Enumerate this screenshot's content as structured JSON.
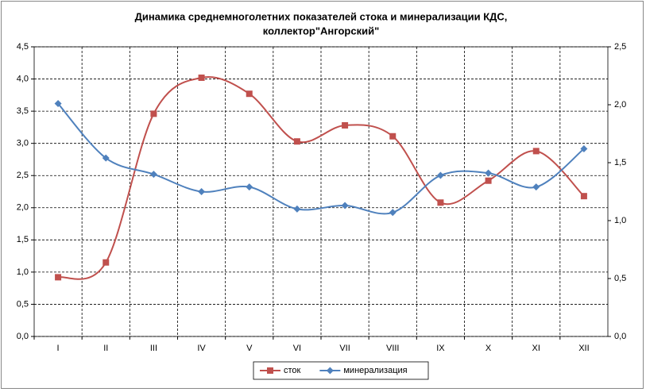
{
  "chart_data": {
    "type": "line",
    "title": [
      "Динамика среднемноголетних показателей стока и минерализации КДС,",
      "коллектор\"Ангорский\""
    ],
    "categories": [
      "I",
      "II",
      "III",
      "IV",
      "V",
      "VI",
      "VII",
      "VIII",
      "IX",
      "X",
      "XI",
      "XII"
    ],
    "series": [
      {
        "name": "сток",
        "color": "#c0504d",
        "marker": "square",
        "smooth": true,
        "values": [
          0.92,
          1.15,
          3.46,
          4.02,
          3.77,
          3.03,
          3.28,
          3.11,
          2.08,
          2.42,
          2.88,
          2.18
        ]
      },
      {
        "name": "минерализация",
        "color": "#4f81bd",
        "marker": "diamond",
        "smooth": true,
        "axis": "y2",
        "values": [
          2.01,
          1.54,
          1.4,
          1.25,
          1.29,
          1.1,
          1.13,
          1.07,
          1.39,
          1.41,
          1.29,
          1.62
        ]
      }
    ],
    "ylim": [
      0,
      4.5
    ],
    "yticks": [
      {
        "value": 0,
        "label": "0,0"
      },
      {
        "value": 0.5,
        "label": "0,5"
      },
      {
        "value": 1,
        "label": "1,0"
      },
      {
        "value": 1.5,
        "label": "1,5"
      },
      {
        "value": 2,
        "label": "2,0"
      },
      {
        "value": 2.5,
        "label": "2,5"
      },
      {
        "value": 3,
        "label": "3,0"
      },
      {
        "value": 3.5,
        "label": "3,5"
      },
      {
        "value": 4,
        "label": "4,0"
      },
      {
        "value": 4.5,
        "label": "4,5"
      }
    ],
    "y2lim": [
      0,
      2.5
    ],
    "y2ticks": [
      {
        "value": 0,
        "label": "0,0"
      },
      {
        "value": 0.5,
        "label": "0,5"
      },
      {
        "value": 1,
        "label": "1,0"
      },
      {
        "value": 1.5,
        "label": "1,5"
      },
      {
        "value": 2,
        "label": "2,0"
      },
      {
        "value": 2.5,
        "label": "2,5"
      }
    ],
    "grid": true,
    "legend": "bottom"
  }
}
